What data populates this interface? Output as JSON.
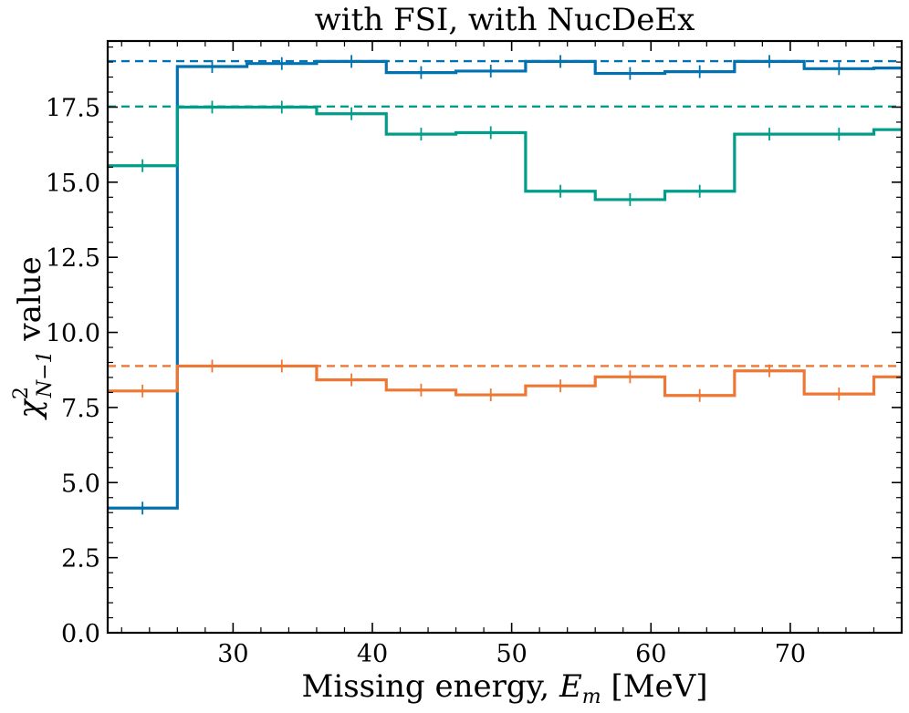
{
  "chart_data": {
    "type": "line",
    "title": "with FSI, with NucDeEx",
    "xlabel_parts": {
      "prefix": "Missing energy, ",
      "symbol": "E",
      "subscript": "m",
      "suffix": " [MeV]"
    },
    "ylabel_parts": {
      "symbol": "χ",
      "superscript": "2",
      "subscript": "N−1",
      "suffix": " value"
    },
    "xlim": [
      21,
      78
    ],
    "ylim": [
      0,
      19.7
    ],
    "x_ticks": [
      30,
      40,
      50,
      60,
      70
    ],
    "x_tick_labels": [
      "30",
      "40",
      "50",
      "60",
      "70"
    ],
    "y_ticks": [
      0,
      2.5,
      5,
      7.5,
      10,
      12.5,
      15,
      17.5
    ],
    "y_tick_labels": [
      "0.0",
      "2.5",
      "5.0",
      "7.5",
      "10.0",
      "12.5",
      "15.0",
      "17.5"
    ],
    "bin_edges": [
      21,
      26,
      31,
      36,
      41,
      46,
      51,
      56,
      61,
      66,
      71,
      76,
      81
    ],
    "bin_centers": [
      23.5,
      28.5,
      33.5,
      38.5,
      43.5,
      48.5,
      53.5,
      58.5,
      63.5,
      68.5,
      73.5,
      78.5
    ],
    "series": [
      {
        "name": "blue",
        "color": "#0072B2",
        "values": [
          4.15,
          18.85,
          18.95,
          19.02,
          18.65,
          18.7,
          19.02,
          18.62,
          18.68,
          19.02,
          18.78,
          18.8
        ],
        "reference": 19.03
      },
      {
        "name": "teal",
        "color": "#009E8A",
        "values": [
          15.55,
          17.5,
          17.5,
          17.28,
          16.6,
          16.65,
          14.7,
          14.42,
          14.7,
          16.6,
          16.6,
          16.75
        ],
        "reference": 17.52
      },
      {
        "name": "orange",
        "color": "#EE7733",
        "values": [
          8.05,
          8.88,
          8.88,
          8.42,
          8.08,
          7.92,
          8.22,
          8.52,
          7.9,
          8.72,
          7.95,
          8.52
        ],
        "reference": 8.88
      }
    ]
  }
}
